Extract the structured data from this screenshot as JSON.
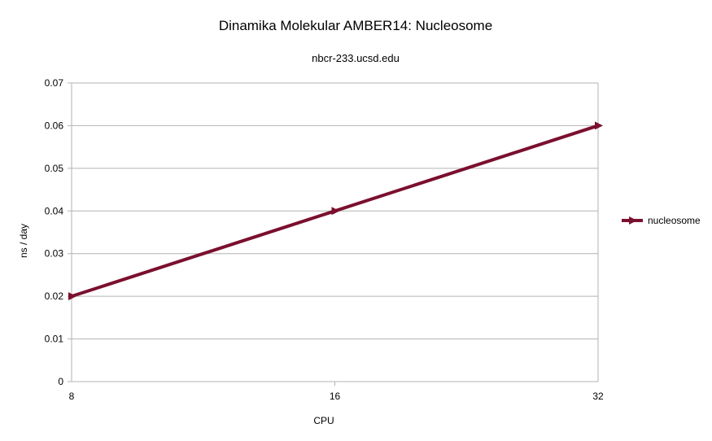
{
  "chart_data": {
    "type": "line",
    "title": "Dinamika Molekular AMBER14: Nucleosome",
    "subtitle": "nbcr-233.ucsd.edu",
    "xlabel": "CPU",
    "ylabel": "ns / day",
    "categories": [
      "8",
      "16",
      "32"
    ],
    "series": [
      {
        "name": "nucleosome",
        "values": [
          0.02,
          0.04,
          0.06
        ],
        "color": "#7b0f2e"
      }
    ],
    "ylim": [
      0,
      0.07
    ],
    "yticks": [
      "0",
      "0.01",
      "0.02",
      "0.03",
      "0.04",
      "0.05",
      "0.06",
      "0.07"
    ],
    "grid": true,
    "legend": "right"
  }
}
